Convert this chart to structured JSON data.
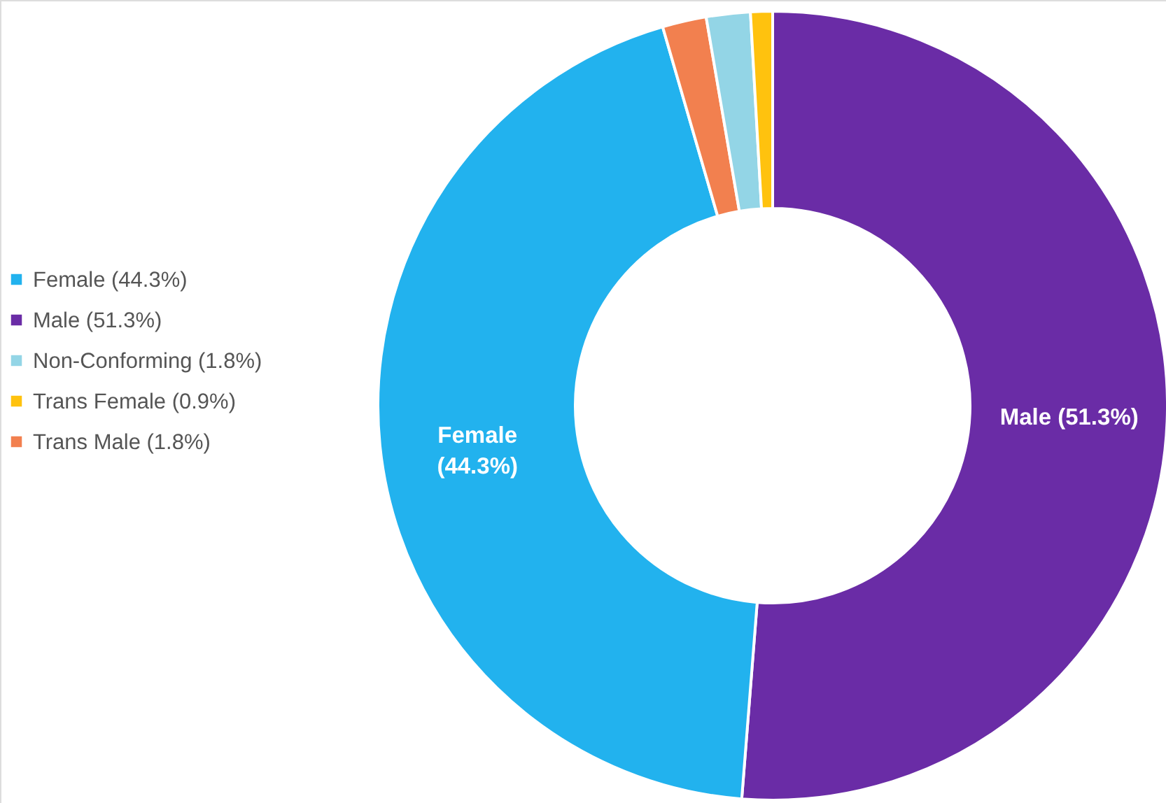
{
  "chart_data": {
    "type": "donut",
    "categories": [
      "Male (51.3%)",
      "Female (44.3%)",
      "Trans Male (1.8%)",
      "Non-Conforming (1.8%)",
      "Trans Female (0.9%)"
    ],
    "values": [
      51.3,
      44.3,
      1.8,
      1.8,
      0.9
    ],
    "colors": [
      "#6a2ca6",
      "#22b2ee",
      "#f2804f",
      "#93d5e6",
      "#ffc20e"
    ],
    "value_labels": [
      "Male (51.3%)",
      "Female (44.3%)",
      null,
      null,
      null
    ],
    "legend": "left"
  }
}
